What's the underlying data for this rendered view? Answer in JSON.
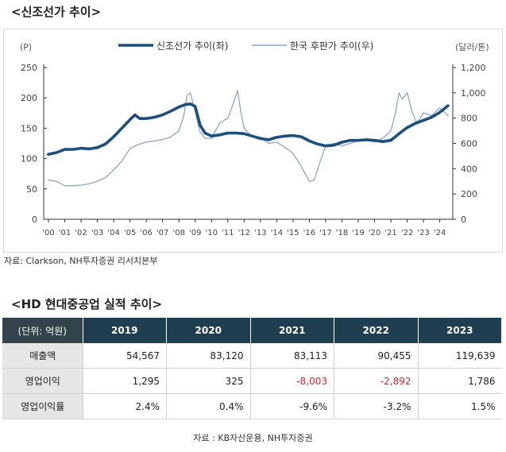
{
  "chart_section": {
    "title": "<신조선가 추이>"
  },
  "chart_data": {
    "type": "line",
    "left_axis_label": "(P)",
    "right_axis_label": "(달러/톤)",
    "ylim_left": [
      0,
      250
    ],
    "ylim_right": [
      0,
      1200
    ],
    "yticks_left": [
      "0",
      "50",
      "100",
      "150",
      "200",
      "250"
    ],
    "yticks_right": [
      "0",
      "200",
      "400",
      "600",
      "800",
      "1,000",
      "1,200"
    ],
    "x_ticks": [
      "'00",
      "'01",
      "'02",
      "'03",
      "'04",
      "'05",
      "'06",
      "'07",
      "'08",
      "'09",
      "'10",
      "'11",
      "'12",
      "'13",
      "'14",
      "'15",
      "'16",
      "'17",
      "'18",
      "'19",
      "'20",
      "'21",
      "'22",
      "'23",
      "'24"
    ],
    "series": [
      {
        "name": "신조선가 추이(좌)",
        "axis": "left",
        "color": "#1c4e80",
        "x": [
          2000.0,
          2000.5,
          2001.0,
          2001.5,
          2002.0,
          2002.5,
          2003.0,
          2003.5,
          2004.0,
          2004.5,
          2005.0,
          2005.3,
          2005.6,
          2006.0,
          2006.5,
          2007.0,
          2007.5,
          2008.0,
          2008.4,
          2008.7,
          2009.0,
          2009.3,
          2009.6,
          2010.0,
          2010.5,
          2011.0,
          2011.5,
          2012.0,
          2012.5,
          2013.0,
          2013.5,
          2014.0,
          2014.5,
          2015.0,
          2015.5,
          2016.0,
          2016.5,
          2017.0,
          2017.5,
          2018.0,
          2018.5,
          2019.0,
          2019.5,
          2020.0,
          2020.5,
          2021.0,
          2021.5,
          2022.0,
          2022.5,
          2023.0,
          2023.5,
          2024.0,
          2024.5
        ],
        "values": [
          107,
          110,
          115,
          115,
          117,
          116,
          118,
          124,
          136,
          150,
          164,
          172,
          166,
          166,
          168,
          172,
          178,
          185,
          189,
          190,
          186,
          155,
          142,
          137,
          139,
          142,
          142,
          141,
          137,
          133,
          131,
          135,
          137,
          138,
          136,
          129,
          124,
          121,
          122,
          127,
          130,
          130,
          131,
          130,
          128,
          130,
          141,
          151,
          158,
          163,
          168,
          176,
          187
        ]
      },
      {
        "name": "한국 후판가 추이(우)",
        "axis": "right",
        "color": "#8fa6c4",
        "x": [
          2000.0,
          2000.5,
          2001.0,
          2001.5,
          2002.0,
          2002.5,
          2003.0,
          2003.5,
          2004.0,
          2004.5,
          2005.0,
          2005.5,
          2006.0,
          2006.5,
          2007.0,
          2007.5,
          2008.0,
          2008.3,
          2008.5,
          2008.7,
          2009.0,
          2009.3,
          2009.6,
          2010.0,
          2010.5,
          2011.0,
          2011.3,
          2011.6,
          2011.8,
          2012.0,
          2012.5,
          2013.0,
          2013.5,
          2014.0,
          2014.5,
          2015.0,
          2015.5,
          2016.0,
          2016.3,
          2016.6,
          2017.0,
          2017.5,
          2018.0,
          2018.5,
          2019.0,
          2019.5,
          2020.0,
          2020.5,
          2021.0,
          2021.3,
          2021.5,
          2021.7,
          2022.0,
          2022.3,
          2022.6,
          2023.0,
          2023.5,
          2024.0,
          2024.5
        ],
        "values": [
          310,
          300,
          265,
          265,
          270,
          280,
          300,
          330,
          390,
          460,
          560,
          590,
          610,
          620,
          630,
          650,
          700,
          820,
          980,
          1000,
          850,
          690,
          640,
          640,
          760,
          800,
          900,
          1020,
          850,
          720,
          650,
          650,
          600,
          610,
          570,
          520,
          420,
          300,
          310,
          430,
          580,
          600,
          580,
          600,
          620,
          630,
          610,
          640,
          700,
          850,
          1000,
          950,
          1000,
          850,
          760,
          840,
          820,
          880,
          820
        ]
      }
    ],
    "grid": false,
    "legend_position": "top"
  },
  "source_chart": "자료: Clarkson, NH투자증권 리서치본부",
  "table_section": {
    "title": "<HD 현대중공업 실적 추이>",
    "unit_header": "(단위: 억원)",
    "years": [
      "2019",
      "2020",
      "2021",
      "2022",
      "2023"
    ],
    "rows": [
      {
        "label": "매출액",
        "cells": [
          "54,567",
          "83,120",
          "83,113",
          "90,455",
          "119,639"
        ]
      },
      {
        "label": "영업이익",
        "cells": [
          "1,295",
          "325",
          "-8,003",
          "-2,892",
          "1,786"
        ]
      },
      {
        "label": "영업이익률",
        "cells": [
          "2.4%",
          "0.4%",
          "-9.6%",
          "-3.2%",
          "1.5%"
        ]
      }
    ]
  },
  "source_table": "자료 : KB자산운용, NH투자증권"
}
